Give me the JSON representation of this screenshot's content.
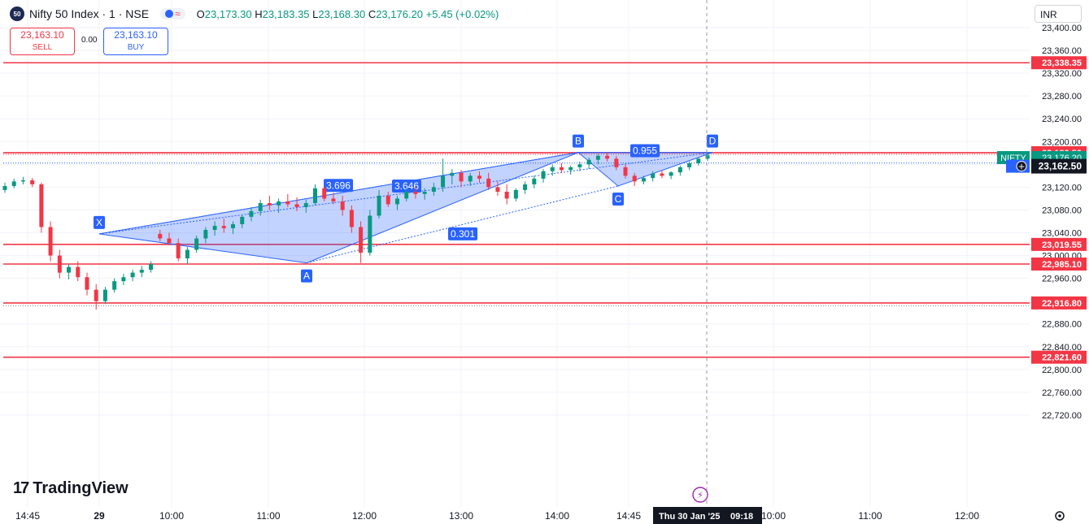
{
  "header": {
    "logo_text": "50",
    "symbol": "Nifty 50 Index · 1 · NSE",
    "o_label": "O",
    "o_value": "23,173.30",
    "h_label": "H",
    "h_value": "23,183.35",
    "l_label": "L",
    "l_value": "23,168.30",
    "c_label": "C",
    "c_value": "23,176.20",
    "change": "+5.45 (+0.02%)",
    "market_icon": "market-status-icon"
  },
  "trade": {
    "sell_price": "23,163.10",
    "sell_label": "SELL",
    "spread": "0.00",
    "buy_price": "23,163.10",
    "buy_label": "BUY"
  },
  "currency": "INR",
  "watermark": {
    "mark": "17",
    "text": "TradingView"
  },
  "colors": {
    "up": "#089981",
    "down": "#f23645",
    "pattern": "#2962ff",
    "level": "#f23645"
  },
  "chart_data": {
    "type": "candlestick",
    "y_range": [
      22700,
      23420
    ],
    "y_ticks": [
      23400,
      23360,
      23320,
      23280,
      23240,
      23200,
      23160,
      23120,
      23080,
      23040,
      23000,
      22960,
      22920,
      22880,
      22840,
      22800,
      22760,
      22720
    ],
    "y_tick_labels": [
      "23,400.00",
      "23,360.00",
      "23,320.00",
      "23,280.00",
      "23,240.00",
      "23,200.00",
      "23,160.00",
      "23,120.00",
      "23,080.00",
      "23,040.00",
      "23,000.00",
      "22,960.00",
      "22,920.00",
      "22,880.00",
      "22,840.00",
      "22,800.00",
      "22,760.00",
      "22,720.00"
    ],
    "x_labels": [
      "14:45",
      "29",
      "10:00",
      "11:00",
      "12:00",
      "13:00",
      "14:00",
      "14:45",
      "10:00",
      "11:00",
      "12:00"
    ],
    "horizontal_levels": [
      {
        "value": 23338.35,
        "label": "23,338.35"
      },
      {
        "value": 23180.5,
        "label": "23,180.50"
      },
      {
        "value": 23019.55,
        "label": "23,019.55"
      },
      {
        "value": 22985.1,
        "label": "22,985.10"
      },
      {
        "value": 22916.8,
        "label": "22,916.80"
      },
      {
        "value": 22821.6,
        "label": "22,821.60"
      }
    ],
    "last_price": {
      "symbol": "NIFTY",
      "value": "23,176.20"
    },
    "crosshair_price": "23,162.50",
    "crosshair_date": "Thu 30 Jan '25",
    "crosshair_time": "09:18",
    "harmonic_pattern": {
      "points": [
        {
          "label": "X",
          "value": 23038
        },
        {
          "label": "A",
          "value": 22987
        },
        {
          "label": "B",
          "value": 23181
        },
        {
          "label": "C",
          "value": 23122
        },
        {
          "label": "D",
          "value": 23181
        }
      ],
      "ratios": [
        "3.696",
        "3.646",
        "0.301",
        "0.955"
      ]
    },
    "series": [
      {
        "name": "Nifty 50 Index",
        "ohlc": [
          [
            23115,
            23128,
            23110,
            23122
          ],
          [
            23122,
            23135,
            23118,
            23130
          ],
          [
            23130,
            23138,
            23125,
            23132
          ],
          [
            23132,
            23136,
            23120,
            23125
          ],
          [
            23125,
            23128,
            23040,
            23050
          ],
          [
            23050,
            23060,
            22990,
            23000
          ],
          [
            23000,
            23010,
            22960,
            22970
          ],
          [
            22970,
            22985,
            22958,
            22980
          ],
          [
            22980,
            22990,
            22955,
            22962
          ],
          [
            22962,
            22970,
            22930,
            22940
          ],
          [
            22940,
            22950,
            22905,
            22920
          ],
          [
            22920,
            22945,
            22915,
            22940
          ],
          [
            22940,
            22960,
            22935,
            22955
          ],
          [
            22955,
            22968,
            22948,
            22962
          ],
          [
            22962,
            22975,
            22955,
            22970
          ],
          [
            22970,
            22982,
            22962,
            22975
          ],
          [
            22975,
            22990,
            22970,
            22985
          ],
          [
            23038,
            23045,
            23025,
            23030
          ],
          [
            23030,
            23040,
            23018,
            23022
          ],
          [
            23022,
            23030,
            22990,
            22995
          ],
          [
            22995,
            23015,
            22985,
            23010
          ],
          [
            23010,
            23035,
            23005,
            23030
          ],
          [
            23030,
            23050,
            23022,
            23045
          ],
          [
            23045,
            23060,
            23035,
            23052
          ],
          [
            23052,
            23065,
            23040,
            23048
          ],
          [
            23048,
            23060,
            23038,
            23055
          ],
          [
            23055,
            23072,
            23048,
            23068
          ],
          [
            23068,
            23085,
            23060,
            23078
          ],
          [
            23078,
            23098,
            23070,
            23092
          ],
          [
            23092,
            23105,
            23080,
            23088
          ],
          [
            23088,
            23100,
            23075,
            23095
          ],
          [
            23095,
            23108,
            23085,
            23090
          ],
          [
            23090,
            23102,
            23078,
            23085
          ],
          [
            23085,
            23098,
            23075,
            23092
          ],
          [
            23092,
            23125,
            23088,
            23118
          ],
          [
            23118,
            23122,
            23095,
            23100
          ],
          [
            23100,
            23110,
            23090,
            23095
          ],
          [
            23095,
            23105,
            23070,
            23080
          ],
          [
            23080,
            23088,
            23040,
            23050
          ],
          [
            23050,
            23060,
            22987,
            23005
          ],
          [
            23005,
            23080,
            23000,
            23070
          ],
          [
            23070,
            23115,
            23065,
            23105
          ],
          [
            23105,
            23112,
            23085,
            23090
          ],
          [
            23090,
            23105,
            23080,
            23100
          ],
          [
            23100,
            23118,
            23095,
            23112
          ],
          [
            23112,
            23120,
            23100,
            23108
          ],
          [
            23108,
            23118,
            23098,
            23112
          ],
          [
            23112,
            23128,
            23105,
            23120
          ],
          [
            23120,
            23170,
            23112,
            23140
          ],
          [
            23140,
            23152,
            23125,
            23145
          ],
          [
            23145,
            23150,
            23120,
            23130
          ],
          [
            23130,
            23145,
            23122,
            23140
          ],
          [
            23140,
            23148,
            23128,
            23135
          ],
          [
            23135,
            23145,
            23115,
            23120
          ],
          [
            23120,
            23130,
            23105,
            23112
          ],
          [
            23112,
            23125,
            23090,
            23100
          ],
          [
            23100,
            23118,
            23095,
            23115
          ],
          [
            23115,
            23130,
            23108,
            23125
          ],
          [
            23125,
            23140,
            23118,
            23135
          ],
          [
            23135,
            23152,
            23128,
            23148
          ],
          [
            23148,
            23160,
            23140,
            23155
          ],
          [
            23155,
            23162,
            23145,
            23150
          ],
          [
            23150,
            23158,
            23142,
            23155
          ],
          [
            23155,
            23165,
            23148,
            23160
          ],
          [
            23160,
            23172,
            23152,
            23168
          ],
          [
            23168,
            23178,
            23160,
            23175
          ],
          [
            23175,
            23181,
            23165,
            23170
          ],
          [
            23170,
            23175,
            23150,
            23155
          ],
          [
            23155,
            23160,
            23135,
            23140
          ],
          [
            23140,
            23145,
            23122,
            23130
          ],
          [
            23130,
            23140,
            23125,
            23136
          ],
          [
            23136,
            23148,
            23130,
            23144
          ],
          [
            23144,
            23150,
            23136,
            23140
          ],
          [
            23140,
            23148,
            23134,
            23146
          ],
          [
            23146,
            23158,
            23140,
            23155
          ],
          [
            23155,
            23165,
            23150,
            23162
          ],
          [
            23162,
            23172,
            23158,
            23170
          ],
          [
            23170,
            23181,
            23166,
            23176
          ]
        ]
      }
    ]
  }
}
